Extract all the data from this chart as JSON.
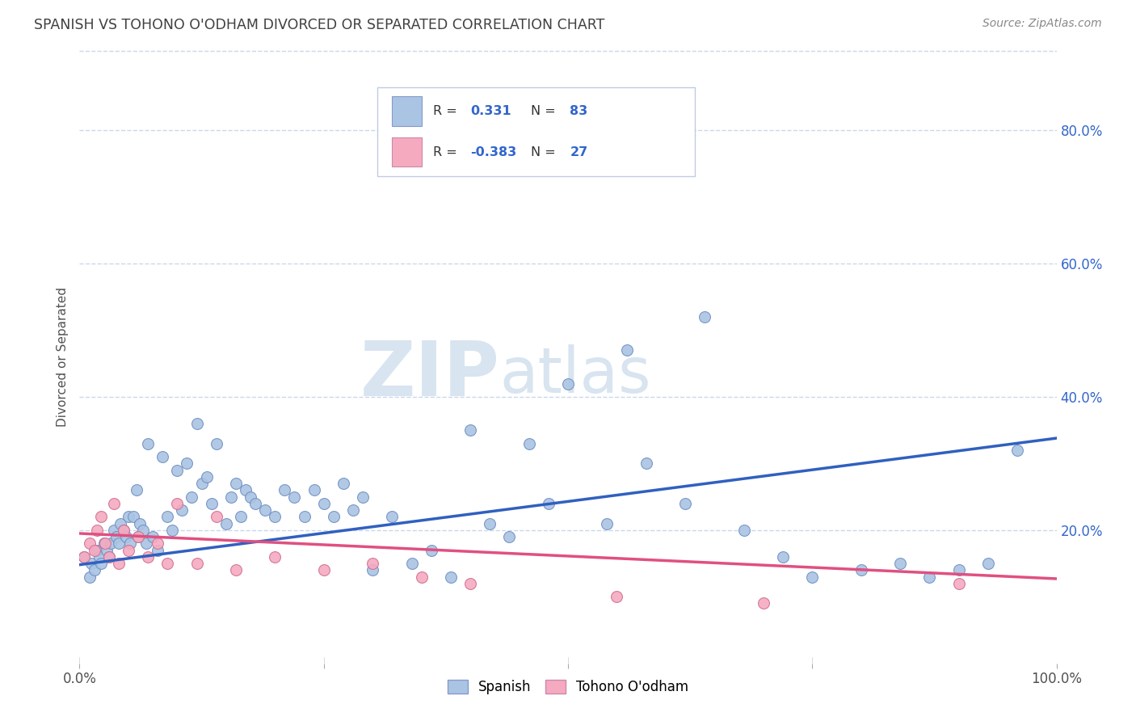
{
  "title": "SPANISH VS TOHONO O'ODHAM DIVORCED OR SEPARATED CORRELATION CHART",
  "source_text": "Source: ZipAtlas.com",
  "ylabel": "Divorced or Separated",
  "xlim": [
    0.0,
    1.0
  ],
  "ylim": [
    0.0,
    0.92
  ],
  "ytick_positions": [
    0.2,
    0.4,
    0.6,
    0.8
  ],
  "ytick_labels": [
    "20.0%",
    "40.0%",
    "60.0%",
    "80.0%"
  ],
  "blue_R": 0.331,
  "blue_N": 83,
  "pink_R": -0.383,
  "pink_N": 27,
  "blue_color": "#aac4e4",
  "pink_color": "#f5aac0",
  "blue_line_color": "#3060c0",
  "pink_line_color": "#e05080",
  "background_color": "#ffffff",
  "grid_color": "#c8d8ec",
  "title_color": "#404040",
  "watermark_color": "#d8e4f0",
  "legend_patch_blue": "#aac4e4",
  "legend_patch_pink": "#f5aac0",
  "blue_x": [
    0.005,
    0.01,
    0.012,
    0.015,
    0.018,
    0.02,
    0.022,
    0.025,
    0.028,
    0.03,
    0.032,
    0.035,
    0.038,
    0.04,
    0.042,
    0.045,
    0.048,
    0.05,
    0.052,
    0.055,
    0.058,
    0.06,
    0.062,
    0.065,
    0.068,
    0.07,
    0.075,
    0.08,
    0.085,
    0.09,
    0.095,
    0.1,
    0.105,
    0.11,
    0.115,
    0.12,
    0.125,
    0.13,
    0.135,
    0.14,
    0.15,
    0.155,
    0.16,
    0.165,
    0.17,
    0.175,
    0.18,
    0.19,
    0.2,
    0.21,
    0.22,
    0.23,
    0.24,
    0.25,
    0.26,
    0.27,
    0.28,
    0.29,
    0.3,
    0.32,
    0.34,
    0.36,
    0.38,
    0.4,
    0.42,
    0.44,
    0.46,
    0.48,
    0.5,
    0.54,
    0.56,
    0.58,
    0.62,
    0.64,
    0.68,
    0.72,
    0.75,
    0.8,
    0.84,
    0.87,
    0.9,
    0.93,
    0.96
  ],
  "blue_y": [
    0.16,
    0.13,
    0.15,
    0.14,
    0.17,
    0.16,
    0.15,
    0.18,
    0.17,
    0.16,
    0.18,
    0.2,
    0.19,
    0.18,
    0.21,
    0.2,
    0.19,
    0.22,
    0.18,
    0.22,
    0.26,
    0.19,
    0.21,
    0.2,
    0.18,
    0.33,
    0.19,
    0.17,
    0.31,
    0.22,
    0.2,
    0.29,
    0.23,
    0.3,
    0.25,
    0.36,
    0.27,
    0.28,
    0.24,
    0.33,
    0.21,
    0.25,
    0.27,
    0.22,
    0.26,
    0.25,
    0.24,
    0.23,
    0.22,
    0.26,
    0.25,
    0.22,
    0.26,
    0.24,
    0.22,
    0.27,
    0.23,
    0.25,
    0.14,
    0.22,
    0.15,
    0.17,
    0.13,
    0.35,
    0.21,
    0.19,
    0.33,
    0.24,
    0.42,
    0.21,
    0.47,
    0.3,
    0.24,
    0.52,
    0.2,
    0.16,
    0.13,
    0.14,
    0.15,
    0.13,
    0.14,
    0.15,
    0.32
  ],
  "pink_x": [
    0.005,
    0.01,
    0.015,
    0.018,
    0.022,
    0.026,
    0.03,
    0.035,
    0.04,
    0.045,
    0.05,
    0.06,
    0.07,
    0.08,
    0.09,
    0.1,
    0.12,
    0.14,
    0.16,
    0.2,
    0.25,
    0.3,
    0.35,
    0.4,
    0.55,
    0.7,
    0.9
  ],
  "pink_y": [
    0.16,
    0.18,
    0.17,
    0.2,
    0.22,
    0.18,
    0.16,
    0.24,
    0.15,
    0.2,
    0.17,
    0.19,
    0.16,
    0.18,
    0.15,
    0.24,
    0.15,
    0.22,
    0.14,
    0.16,
    0.14,
    0.15,
    0.13,
    0.12,
    0.1,
    0.09,
    0.12
  ],
  "blue_line_intercept": 0.148,
  "blue_line_slope": 0.19,
  "pink_line_intercept": 0.195,
  "pink_line_slope": -0.068
}
